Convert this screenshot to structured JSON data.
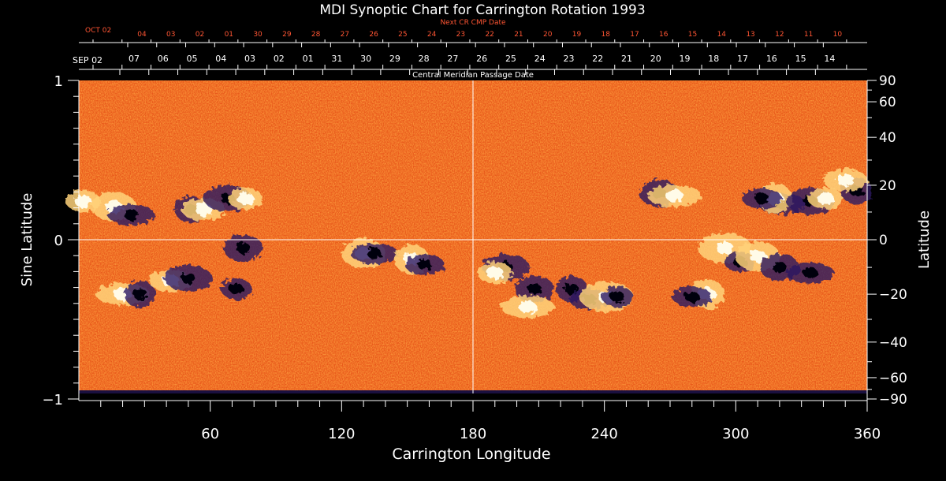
{
  "chart_data": {
    "type": "heatmap",
    "title": "MDI Synoptic Chart for Carrington Rotation 1993",
    "xlabel": "Carrington Longitude",
    "ylabel_left": "Sine Latitude",
    "ylabel_right": "Latitude",
    "xlim": [
      0,
      360
    ],
    "ylim": [
      -1,
      1
    ],
    "x_ticks": [
      "60",
      "120",
      "180",
      "240",
      "300",
      "360"
    ],
    "y_ticks_left": [
      {
        "value": 1,
        "label": "1"
      },
      {
        "value": 0,
        "label": "0"
      },
      {
        "value": -1,
        "label": "−1"
      }
    ],
    "y_ticks_right": [
      "90",
      "60",
      "40",
      "20",
      "0",
      "−20",
      "−40",
      "−60",
      "−90"
    ],
    "top_axis_title": "Central Meridian Passage Date",
    "top_axis_month_label": "SEP 02",
    "top_axis_dates": [
      "07",
      "06",
      "05",
      "04",
      "03",
      "02",
      "01",
      "31",
      "30",
      "29",
      "28",
      "27",
      "26",
      "25",
      "24",
      "23",
      "22",
      "21",
      "20",
      "19",
      "18",
      "17",
      "16",
      "15",
      "14"
    ],
    "next_cr_title": "Next CR CMP Date",
    "next_cr_month_label": "OCT 02",
    "next_cr_dates": [
      "04",
      "03",
      "02",
      "01",
      "30",
      "29",
      "28",
      "27",
      "26",
      "25",
      "24",
      "23",
      "22",
      "21",
      "20",
      "19",
      "18",
      "17",
      "16",
      "15",
      "14",
      "13",
      "12",
      "11",
      "10"
    ],
    "regions": [
      {
        "lon": 2,
        "lat": 14,
        "polarity": "positive"
      },
      {
        "lon": 16,
        "lat": 12,
        "polarity": "positive"
      },
      {
        "lon": 24,
        "lat": 9,
        "polarity": "negative"
      },
      {
        "lon": 51,
        "lat": 11,
        "polarity": "negative"
      },
      {
        "lon": 57,
        "lat": 11,
        "polarity": "positive"
      },
      {
        "lon": 68,
        "lat": 15,
        "polarity": "negative"
      },
      {
        "lon": 76,
        "lat": 15,
        "polarity": "positive"
      },
      {
        "lon": 75,
        "lat": -3,
        "polarity": "negative"
      },
      {
        "lon": 20,
        "lat": -20,
        "polarity": "positive"
      },
      {
        "lon": 28,
        "lat": -20,
        "polarity": "negative"
      },
      {
        "lon": 42,
        "lat": -15,
        "polarity": "positive"
      },
      {
        "lon": 50,
        "lat": -14,
        "polarity": "negative"
      },
      {
        "lon": 72,
        "lat": -18,
        "polarity": "negative"
      },
      {
        "lon": 130,
        "lat": -5,
        "polarity": "positive"
      },
      {
        "lon": 135,
        "lat": -5,
        "polarity": "negative"
      },
      {
        "lon": 152,
        "lat": -7,
        "polarity": "positive"
      },
      {
        "lon": 158,
        "lat": -9,
        "polarity": "negative"
      },
      {
        "lon": 195,
        "lat": -10,
        "polarity": "negative"
      },
      {
        "lon": 190,
        "lat": -12,
        "polarity": "positive"
      },
      {
        "lon": 208,
        "lat": -18,
        "polarity": "negative"
      },
      {
        "lon": 205,
        "lat": -25,
        "polarity": "positive"
      },
      {
        "lon": 225,
        "lat": -18,
        "polarity": "negative"
      },
      {
        "lon": 233,
        "lat": -22,
        "polarity": "negative"
      },
      {
        "lon": 241,
        "lat": -21,
        "polarity": "positive"
      },
      {
        "lon": 246,
        "lat": -21,
        "polarity": "negative"
      },
      {
        "lon": 265,
        "lat": 17,
        "polarity": "negative"
      },
      {
        "lon": 272,
        "lat": 16,
        "polarity": "positive"
      },
      {
        "lon": 287,
        "lat": -20,
        "polarity": "positive"
      },
      {
        "lon": 280,
        "lat": -21,
        "polarity": "negative"
      },
      {
        "lon": 295,
        "lat": -3,
        "polarity": "positive"
      },
      {
        "lon": 302,
        "lat": -8,
        "polarity": "negative"
      },
      {
        "lon": 310,
        "lat": -6,
        "polarity": "positive"
      },
      {
        "lon": 321,
        "lat": 13,
        "polarity": "negative"
      },
      {
        "lon": 318,
        "lat": 15,
        "polarity": "positive"
      },
      {
        "lon": 312,
        "lat": 15,
        "polarity": "negative"
      },
      {
        "lon": 334,
        "lat": 14,
        "polarity": "negative"
      },
      {
        "lon": 341,
        "lat": 15,
        "polarity": "positive"
      },
      {
        "lon": 320,
        "lat": -10,
        "polarity": "negative"
      },
      {
        "lon": 334,
        "lat": -12,
        "polarity": "negative"
      },
      {
        "lon": 355,
        "lat": 18,
        "polarity": "negative"
      },
      {
        "lon": 350,
        "lat": 22,
        "polarity": "positive"
      }
    ],
    "grid": false,
    "colormap": "red-orange-white (positive) / dark blue-black (negative)"
  }
}
